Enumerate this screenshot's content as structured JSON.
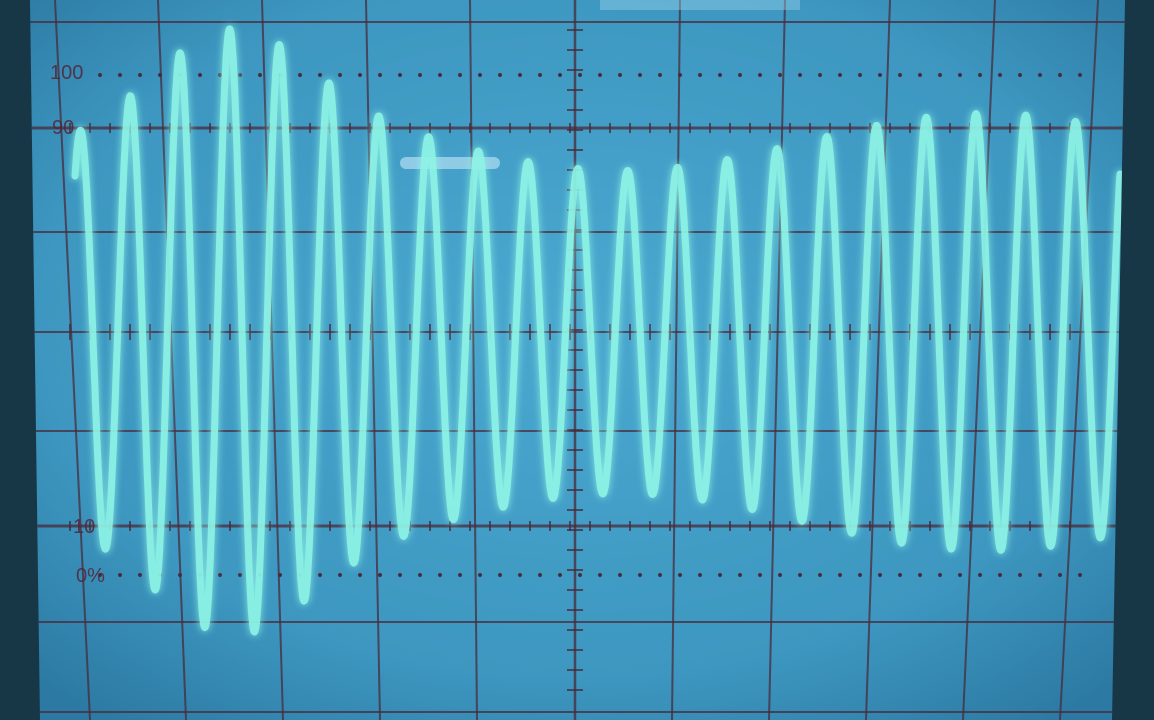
{
  "screen": {
    "bezel_color": "#183746",
    "phosphor_bg": "#3f9cc4",
    "graticule_color": "#4a2a3a",
    "trace_color": "#8ff5e6",
    "trace_glow": "#52e0d0",
    "case_color": "#d9d6cd"
  },
  "graticule": {
    "labels": {
      "label_100": "100",
      "label_90": "90",
      "label_10": "10",
      "label_0": "0%"
    },
    "divisions_x": 10,
    "divisions_y": 6,
    "minor_ticks_per_division": 5
  },
  "waveform": {
    "type": "modulated-sine",
    "cycles_visible": 21,
    "carrier_amplitude_divisions": 1.9,
    "icon": "sine-wave-icon"
  }
}
